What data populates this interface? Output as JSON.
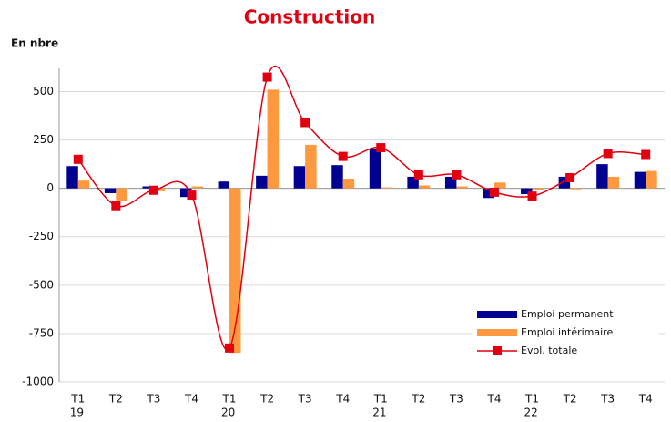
{
  "chart_data": {
    "type": "bar-line",
    "title": "Construction",
    "y_label": "En nbre",
    "categories": [
      "T1",
      "T2",
      "T3",
      "T4",
      "T1",
      "T2",
      "T3",
      "T4",
      "T1",
      "T2",
      "T3",
      "T4",
      "T1",
      "T2",
      "T3",
      "T4"
    ],
    "year_labels": [
      "19",
      null,
      null,
      null,
      "20",
      null,
      null,
      null,
      "21",
      null,
      null,
      null,
      "22",
      null,
      null,
      null
    ],
    "series": [
      {
        "name": "Emploi permanent",
        "type": "bar",
        "color": "#000091",
        "values": [
          115,
          -25,
          10,
          -45,
          35,
          65,
          115,
          120,
          205,
          60,
          60,
          -50,
          -30,
          60,
          125,
          85
        ]
      },
      {
        "name": "Emploi intérimaire",
        "type": "bar",
        "color": "#ff9940",
        "values": [
          40,
          -65,
          -15,
          10,
          -850,
          510,
          225,
          50,
          5,
          15,
          10,
          30,
          -10,
          -5,
          60,
          90
        ]
      },
      {
        "name": "Evol. totale",
        "type": "line",
        "color": "#e1000f",
        "values": [
          150,
          -90,
          -10,
          -35,
          -825,
          575,
          340,
          165,
          210,
          70,
          70,
          -20,
          -40,
          55,
          180,
          175
        ]
      }
    ],
    "ylim": [
      -1000,
      620
    ],
    "yticks": [
      -1000,
      -750,
      -500,
      -250,
      0,
      250,
      500
    ],
    "grid": true
  }
}
